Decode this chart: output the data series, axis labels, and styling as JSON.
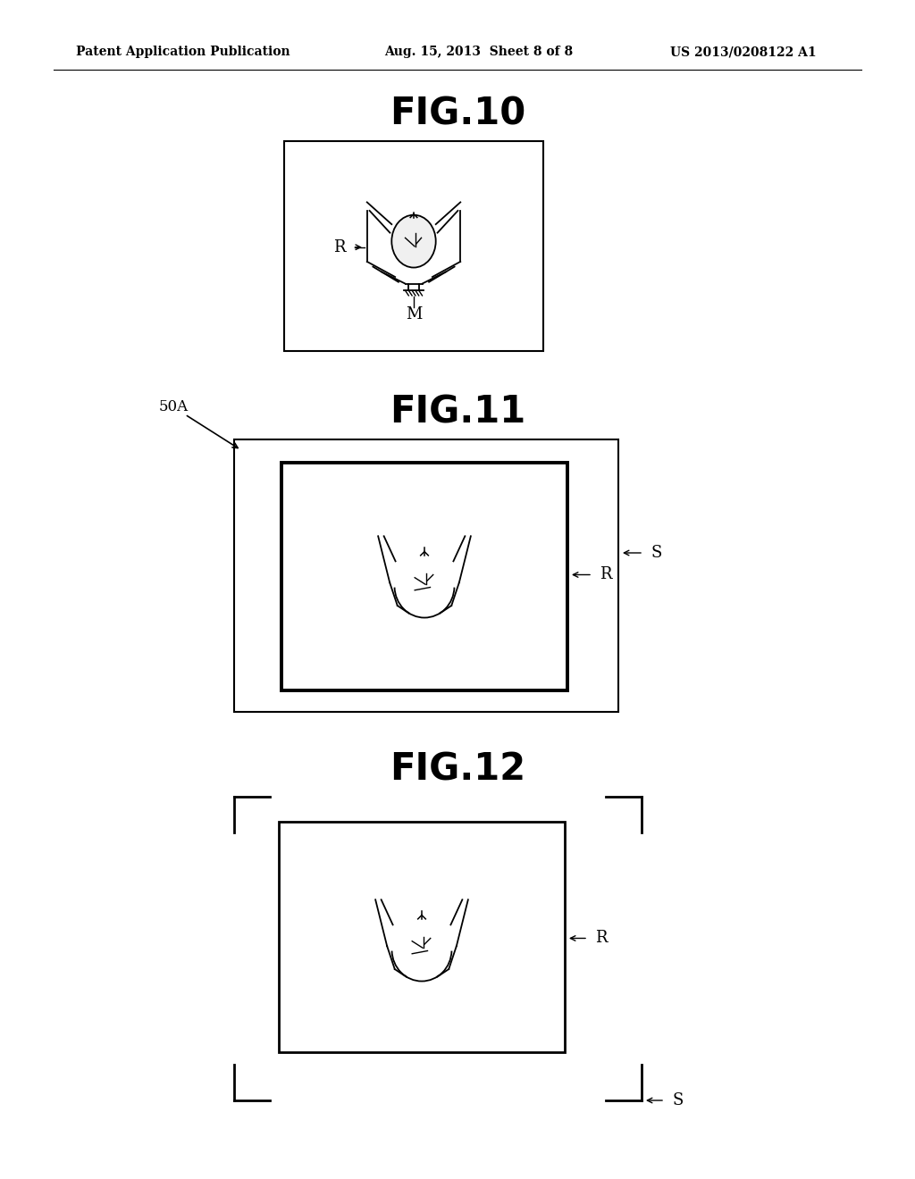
{
  "bg_color": "#ffffff",
  "header_left": "Patent Application Publication",
  "header_center": "Aug. 15, 2013  Sheet 8 of 8",
  "header_right": "US 2013/0208122 A1",
  "fig10_title": "FIG.10",
  "fig11_title": "FIG.11",
  "fig12_title": "FIG.12",
  "label_color": "#000000",
  "line_color": "#000000"
}
